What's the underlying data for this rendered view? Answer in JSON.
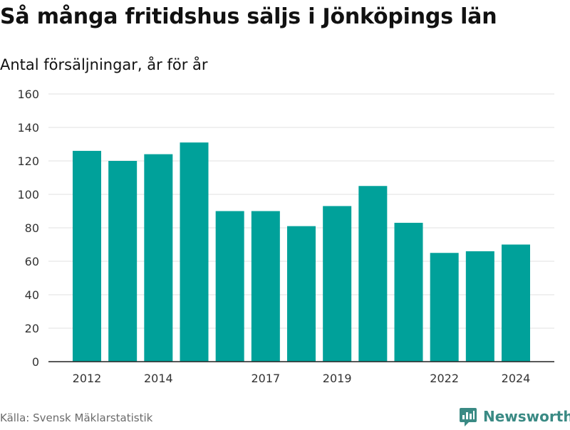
{
  "title": "Så många fritidshus säljs i Jönköpings län",
  "subtitle": "Antal försäljningar, år för år",
  "source": "Källa: Svensk Mäklarstatistik",
  "brand": {
    "name": "Newsworthy",
    "icon": "newsworthy-logo-icon",
    "color": "#3a8a84"
  },
  "chart_data": {
    "type": "bar",
    "title": "Så många fritidshus säljs i Jönköpings län",
    "subtitle": "Antal försäljningar, år för år",
    "categories": [
      "2012",
      "2013",
      "2014",
      "2015",
      "2016",
      "2017",
      "2018",
      "2019",
      "2020",
      "2021",
      "2022",
      "2023",
      "2024"
    ],
    "values": [
      126,
      120,
      124,
      131,
      90,
      90,
      81,
      93,
      105,
      83,
      65,
      66,
      70
    ],
    "x_tick_labels": [
      "2012",
      "2014",
      "2017",
      "2019",
      "2022",
      "2024"
    ],
    "y_ticks": [
      0,
      20,
      40,
      60,
      80,
      100,
      120,
      140,
      160
    ],
    "ylim": [
      0,
      160
    ],
    "xlabel": "",
    "ylabel": "",
    "bar_color": "#00a19a",
    "grid": true,
    "grid_color": "#e0e0e0",
    "legend": "none"
  }
}
